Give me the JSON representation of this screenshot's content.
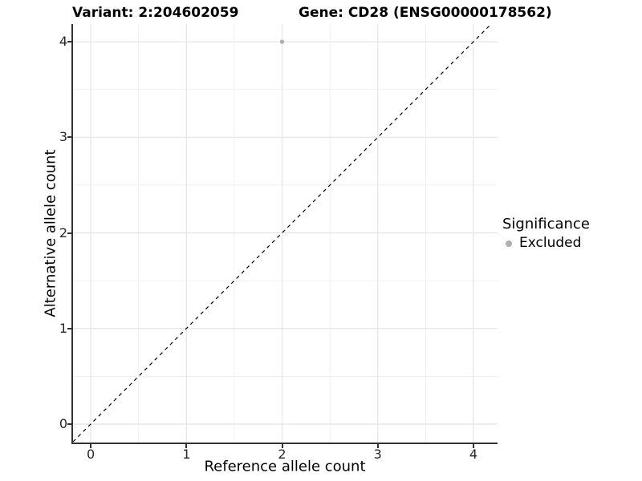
{
  "chart_data": {
    "type": "scatter",
    "title_left": "Variant: 2:204602059",
    "title_right": "Gene: CD28 (ENSG00000178562)",
    "xlabel": "Reference allele count",
    "ylabel": "Alternative allele count",
    "xlim": [
      -0.185,
      4.252
    ],
    "ylim": [
      -0.193,
      4.185
    ],
    "xticks": [
      0,
      1,
      2,
      3,
      4
    ],
    "yticks": [
      0,
      1,
      2,
      3,
      4
    ],
    "minor_ticks": [
      0.5,
      1.5,
      2.5,
      3.5
    ],
    "grid": true,
    "reference_line": {
      "type": "abline",
      "slope": 1,
      "intercept": 0,
      "style": "dashed",
      "color": "#000000"
    },
    "series": [
      {
        "name": "Excluded",
        "color": "#b0b0b0",
        "points": [
          {
            "x": 2,
            "y": 4
          }
        ]
      }
    ],
    "legend": {
      "title": "Significance",
      "position": "right",
      "items": [
        {
          "label": "Excluded",
          "color": "#b0b0b0"
        }
      ]
    },
    "colors": {
      "grid_major": "#e4e4e4",
      "grid_minor": "#f1f1f1",
      "axis_line": "#333333",
      "tick_mark": "#333333",
      "point": "#b0b0b0"
    }
  }
}
